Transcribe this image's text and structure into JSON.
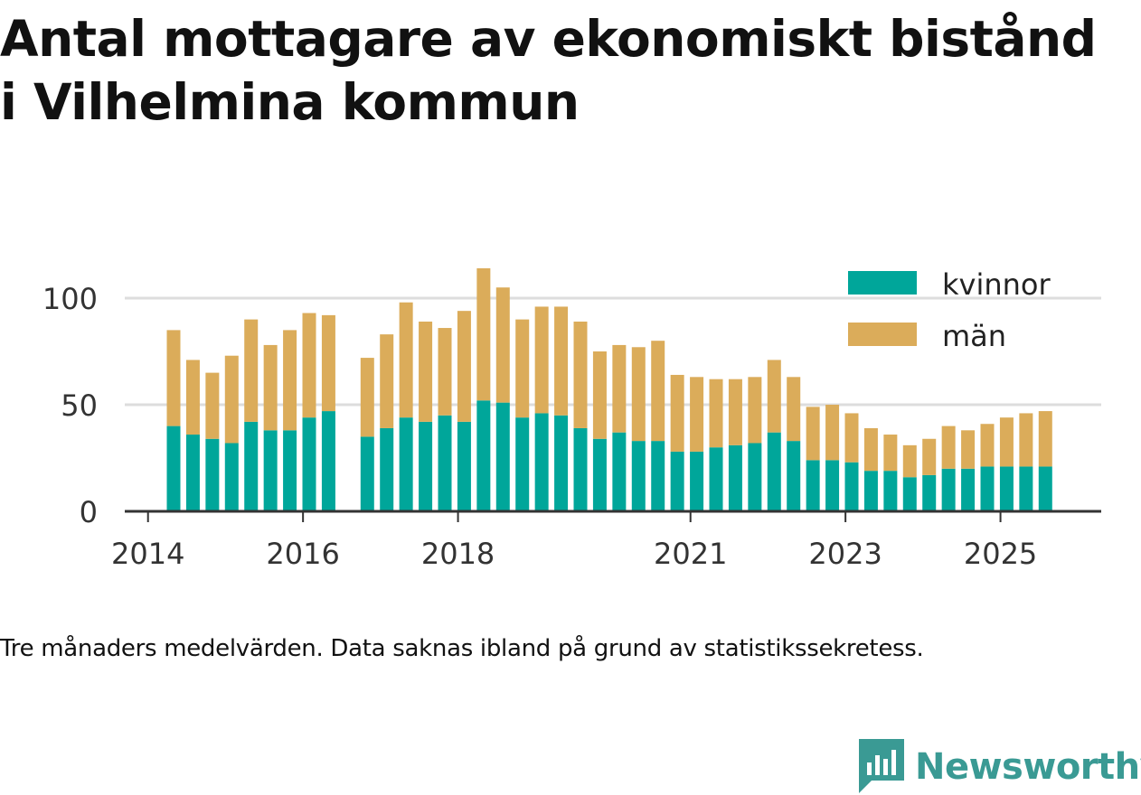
{
  "title_lines": [
    "Antal mottagare av ekonomiskt bistånd",
    "i Vilhelmina kommun"
  ],
  "note": "Tre månaders medelvärden. Data saknas ibland på grund av statistikssekretess.",
  "brand": {
    "name": "Newsworthy",
    "color": "#3a9a94"
  },
  "colors": {
    "kvinnor": "#00a69a",
    "man": "#dbac5a",
    "grid": "#dddddd",
    "axis": "#333333"
  },
  "chart_data": {
    "type": "bar",
    "stacked": true,
    "title": "Antal mottagare av ekonomiskt bistånd i Vilhelmina kommun",
    "xlabel": "",
    "ylabel": "",
    "ylim": [
      0,
      120
    ],
    "yticks": [
      0,
      50,
      100
    ],
    "xlim": [
      2013.7,
      2026.3
    ],
    "xticks": [
      {
        "value": 2014,
        "label": "2014"
      },
      {
        "value": 2016,
        "label": "2016"
      },
      {
        "value": 2018,
        "label": "2018"
      },
      {
        "value": 2021,
        "label": "2021"
      },
      {
        "value": 2023,
        "label": "2023"
      },
      {
        "value": 2025,
        "label": "2025"
      }
    ],
    "legend_position": "top-right",
    "x": [
      2014.33,
      2014.58,
      2014.83,
      2015.08,
      2015.33,
      2015.58,
      2015.83,
      2016.08,
      2016.33,
      2016.83,
      2017.08,
      2017.33,
      2017.58,
      2017.83,
      2018.08,
      2018.33,
      2018.58,
      2018.83,
      2019.08,
      2019.33,
      2019.58,
      2019.83,
      2020.08,
      2020.33,
      2020.58,
      2020.83,
      2021.08,
      2021.33,
      2021.58,
      2021.83,
      2022.08,
      2022.33,
      2022.58,
      2022.83,
      2023.08,
      2023.33,
      2023.58,
      2023.83,
      2024.08,
      2024.33,
      2024.58,
      2024.83,
      2025.08,
      2025.33,
      2025.58
    ],
    "series": [
      {
        "name": "kvinnor",
        "color": "#00a69a",
        "values": [
          40,
          36,
          34,
          32,
          42,
          38,
          38,
          44,
          47,
          35,
          39,
          44,
          42,
          45,
          42,
          52,
          51,
          44,
          46,
          45,
          39,
          34,
          37,
          33,
          33,
          28,
          28,
          30,
          31,
          32,
          37,
          33,
          24,
          24,
          23,
          19,
          19,
          16,
          17,
          20,
          20,
          21,
          21,
          21,
          21
        ]
      },
      {
        "name": "män",
        "color": "#dbac5a",
        "values": [
          45,
          35,
          31,
          41,
          48,
          40,
          47,
          49,
          45,
          37,
          44,
          54,
          47,
          41,
          52,
          62,
          54,
          46,
          50,
          51,
          50,
          41,
          41,
          44,
          47,
          36,
          35,
          32,
          31,
          31,
          34,
          30,
          25,
          26,
          23,
          20,
          17,
          15,
          17,
          20,
          18,
          20,
          23,
          25,
          26
        ]
      }
    ]
  }
}
